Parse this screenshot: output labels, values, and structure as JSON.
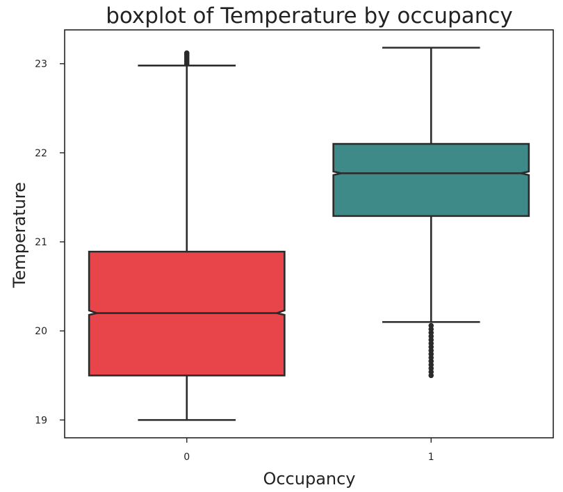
{
  "chart_data": {
    "type": "boxplot",
    "title": "boxplot of Temperature by occupancy",
    "xlabel": "Occupancy",
    "ylabel": "Temperature",
    "categories": [
      "0",
      "1"
    ],
    "ylim": [
      18.8,
      23.38
    ],
    "yticks": [
      19,
      20,
      21,
      22,
      23
    ],
    "notched": true,
    "grid": false,
    "boxes": [
      {
        "category": "0",
        "color": "#e8454a",
        "whisker_low": 19.0,
        "q1": 19.5,
        "median": 20.2,
        "q3": 20.89,
        "whisker_high": 22.98,
        "notch_low": 20.18,
        "notch_high": 20.23,
        "outliers": [
          23.0,
          23.02,
          23.04,
          23.06,
          23.08,
          23.1,
          23.12
        ]
      },
      {
        "category": "1",
        "color": "#3d8a89",
        "whisker_low": 20.1,
        "q1": 21.29,
        "median": 21.77,
        "q3": 22.1,
        "whisker_high": 23.18,
        "notch_low": 21.75,
        "notch_high": 21.79,
        "outliers": [
          19.5,
          19.54,
          19.58,
          19.62,
          19.66,
          19.7,
          19.74,
          19.78,
          19.82,
          19.86,
          19.9,
          19.94,
          19.98,
          20.02,
          20.06
        ]
      }
    ]
  }
}
